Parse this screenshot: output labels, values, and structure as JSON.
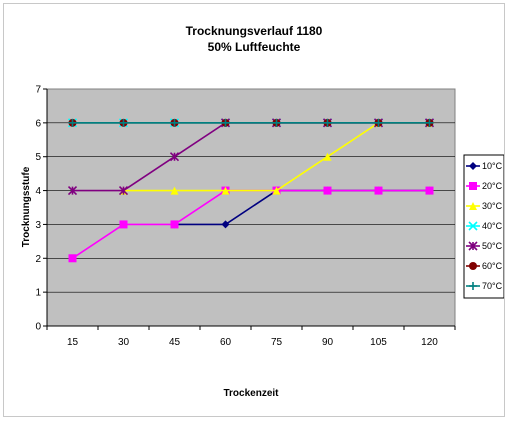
{
  "chart_data": {
    "type": "line",
    "title": "Trocknungsverlauf 1180",
    "subtitle": "50% Luftfeuchte",
    "xlabel": "Trockenzeit",
    "ylabel": "Trocknungsstufe",
    "categories": [
      "15",
      "30",
      "45",
      "60",
      "75",
      "90",
      "105",
      "120"
    ],
    "ylim": [
      0,
      7
    ],
    "yticks": [
      "0",
      "1",
      "2",
      "3",
      "4",
      "5",
      "6",
      "7"
    ],
    "grid": "horizontal",
    "legend_position": "right",
    "plot_background": "#c0c0c0",
    "series": [
      {
        "name": "10°C",
        "color": "#000080",
        "marker": "diamond",
        "values": [
          null,
          null,
          3,
          3,
          4,
          4,
          4,
          4
        ]
      },
      {
        "name": "20°C",
        "color": "#ff00ff",
        "marker": "square",
        "values": [
          2,
          3,
          3,
          4,
          4,
          4,
          4,
          4
        ]
      },
      {
        "name": "30°C",
        "color": "#ffff00",
        "marker": "triangle",
        "values": [
          null,
          4,
          4,
          4,
          4,
          5,
          6,
          6
        ]
      },
      {
        "name": "40°C",
        "color": "#00ffff",
        "marker": "x",
        "values": [
          6,
          6,
          6,
          6,
          6,
          6,
          6,
          6
        ]
      },
      {
        "name": "50°C",
        "color": "#800080",
        "marker": "star",
        "values": [
          4,
          4,
          5,
          6,
          6,
          6,
          6,
          6
        ]
      },
      {
        "name": "60°C",
        "color": "#800000",
        "marker": "circle",
        "values": [
          6,
          6,
          6,
          6,
          6,
          6,
          6,
          6
        ]
      },
      {
        "name": "70°C",
        "color": "#008080",
        "marker": "plus",
        "values": [
          6,
          6,
          6,
          6,
          6,
          6,
          6,
          6
        ]
      }
    ]
  }
}
